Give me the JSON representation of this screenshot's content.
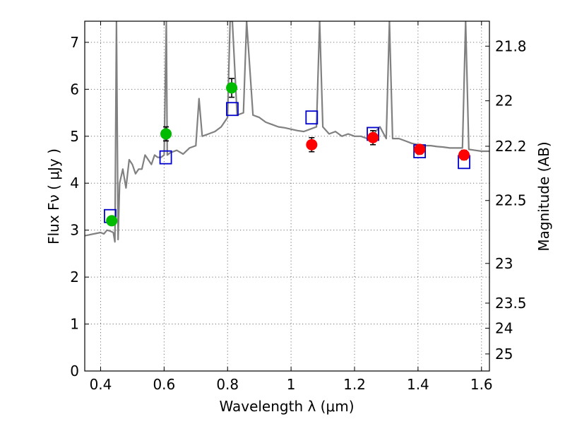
{
  "chart_data": {
    "type": "scatter",
    "xlabel": "Wavelength  λ (μm)",
    "ylabel": "Flux  Fν  ( μJy )",
    "y2label": "Magnitude (AB)",
    "xlim": [
      0.35,
      1.625
    ],
    "ylim": [
      0,
      7.45
    ],
    "grid": true,
    "x_ticks": [
      0.4,
      0.6,
      0.8,
      1.0,
      1.2,
      1.4,
      1.6
    ],
    "x_tick_labels": [
      "0.4",
      "0.6",
      "0.8",
      "1",
      "1.2",
      "1.4",
      "1.6"
    ],
    "y_ticks": [
      0,
      1,
      2,
      3,
      4,
      5,
      6,
      7
    ],
    "y_tick_labels": [
      "0",
      "1",
      "2",
      "3",
      "4",
      "5",
      "6",
      "7"
    ],
    "y2_ticks": [
      21.8,
      22,
      22.2,
      22.5,
      23,
      23.5,
      24,
      25
    ],
    "y2_tick_labels": [
      "21.8",
      "22",
      "22.2",
      "22.5",
      "23",
      "23.5",
      "24",
      "25"
    ],
    "colors": {
      "spectrum": "#808080",
      "model": "#0000cc",
      "obs_green": "#00bb00",
      "obs_red": "#ff0000",
      "errorbar": "#000000"
    },
    "series": [
      {
        "kind": "spectrum",
        "x": [
          0.35,
          0.4,
          0.41,
          0.42,
          0.43,
          0.44,
          0.445,
          0.45,
          0.455,
          0.46,
          0.47,
          0.48,
          0.49,
          0.5,
          0.51,
          0.52,
          0.53,
          0.54,
          0.55,
          0.56,
          0.57,
          0.58,
          0.59,
          0.6,
          0.607,
          0.61,
          0.62,
          0.64,
          0.66,
          0.68,
          0.7,
          0.71,
          0.72,
          0.74,
          0.76,
          0.78,
          0.8,
          0.808,
          0.815,
          0.83,
          0.85,
          0.86,
          0.88,
          0.9,
          0.92,
          0.94,
          0.96,
          0.98,
          1.0,
          1.02,
          1.04,
          1.06,
          1.08,
          1.09,
          1.1,
          1.12,
          1.14,
          1.16,
          1.18,
          1.2,
          1.22,
          1.24,
          1.26,
          1.28,
          1.3,
          1.31,
          1.32,
          1.34,
          1.36,
          1.38,
          1.4,
          1.42,
          1.44,
          1.46,
          1.48,
          1.5,
          1.52,
          1.54,
          1.55,
          1.56,
          1.58,
          1.6,
          1.625
        ],
        "y": [
          2.88,
          2.95,
          2.92,
          3.0,
          2.98,
          2.95,
          2.75,
          7.45,
          2.8,
          4.0,
          4.3,
          3.9,
          4.5,
          4.4,
          4.2,
          4.3,
          4.3,
          4.6,
          4.5,
          4.4,
          4.6,
          4.55,
          4.55,
          4.6,
          7.45,
          4.6,
          4.65,
          4.7,
          4.62,
          4.75,
          4.8,
          5.8,
          5.0,
          5.05,
          5.1,
          5.2,
          5.4,
          7.45,
          7.45,
          5.45,
          5.5,
          7.45,
          5.45,
          5.4,
          5.3,
          5.25,
          5.2,
          5.18,
          5.15,
          5.12,
          5.1,
          5.15,
          5.2,
          7.45,
          5.2,
          5.05,
          5.1,
          5.0,
          5.05,
          5.0,
          5.0,
          4.95,
          5.05,
          5.2,
          4.95,
          7.45,
          4.95,
          4.95,
          4.9,
          4.85,
          4.82,
          4.8,
          4.8,
          4.78,
          4.77,
          4.75,
          4.75,
          4.75,
          7.45,
          4.72,
          4.7,
          4.68,
          4.68
        ]
      },
      {
        "kind": "model",
        "x": [
          0.43,
          0.605,
          0.815,
          1.065,
          1.258,
          1.405,
          1.545
        ],
        "y": [
          3.3,
          4.55,
          5.58,
          5.4,
          5.05,
          4.68,
          4.45
        ]
      },
      {
        "kind": "observed",
        "x": [
          0.435,
          0.606,
          0.813
        ],
        "y": [
          3.2,
          5.05,
          6.03
        ],
        "err": [
          0.08,
          0.15,
          0.2
        ]
      },
      {
        "kind": "observed",
        "x": [
          1.065,
          1.258,
          1.405,
          1.545
        ],
        "y": [
          4.82,
          4.97,
          4.72,
          4.6
        ],
        "err": [
          0.15,
          0.15,
          0.1,
          0.1
        ]
      }
    ]
  }
}
